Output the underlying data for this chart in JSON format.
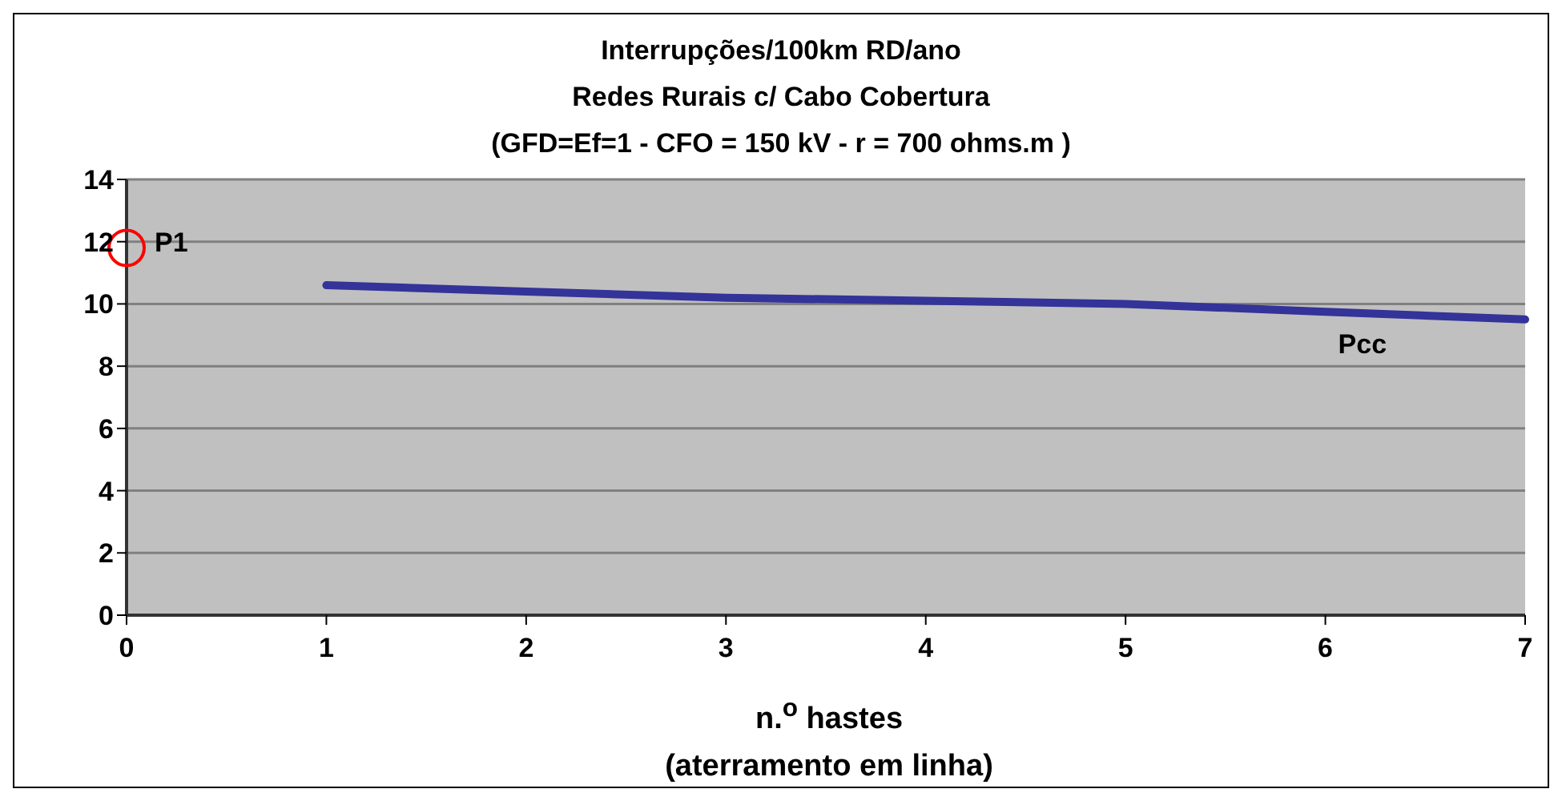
{
  "chart_data": {
    "type": "line",
    "title": "Interrupções/100km RD/ano",
    "subtitle": "Redes Rurais c/ Cabo Cobertura\n(GFD=Ef=1 - CFO = 150 kV - r = 700 ohms.m )",
    "xlabel": "n.$^{o}$ hastes\n(aterramento em linha)",
    "series": [
      {
        "name": "Pcc",
        "color": "#333399",
        "marker": "none",
        "x": [
          1,
          2,
          3,
          4,
          5,
          6,
          7
        ],
        "values": [
          10.6,
          10.4,
          10.2,
          10.1,
          10.0,
          9.75,
          9.5
        ]
      },
      {
        "name": "P1",
        "type": "scatter",
        "color": "#ff0000",
        "marker": "circle",
        "x": [
          0
        ],
        "values": [
          11.8
        ]
      }
    ],
    "xlim": [
      0,
      7
    ],
    "xticks": [
      0,
      1,
      2,
      3,
      4,
      5,
      6,
      7
    ],
    "ylim": [
      0,
      14
    ],
    "yticks": [
      0,
      2,
      4,
      6,
      8,
      10,
      12,
      14
    ],
    "grid": "y",
    "legend": false
  }
}
